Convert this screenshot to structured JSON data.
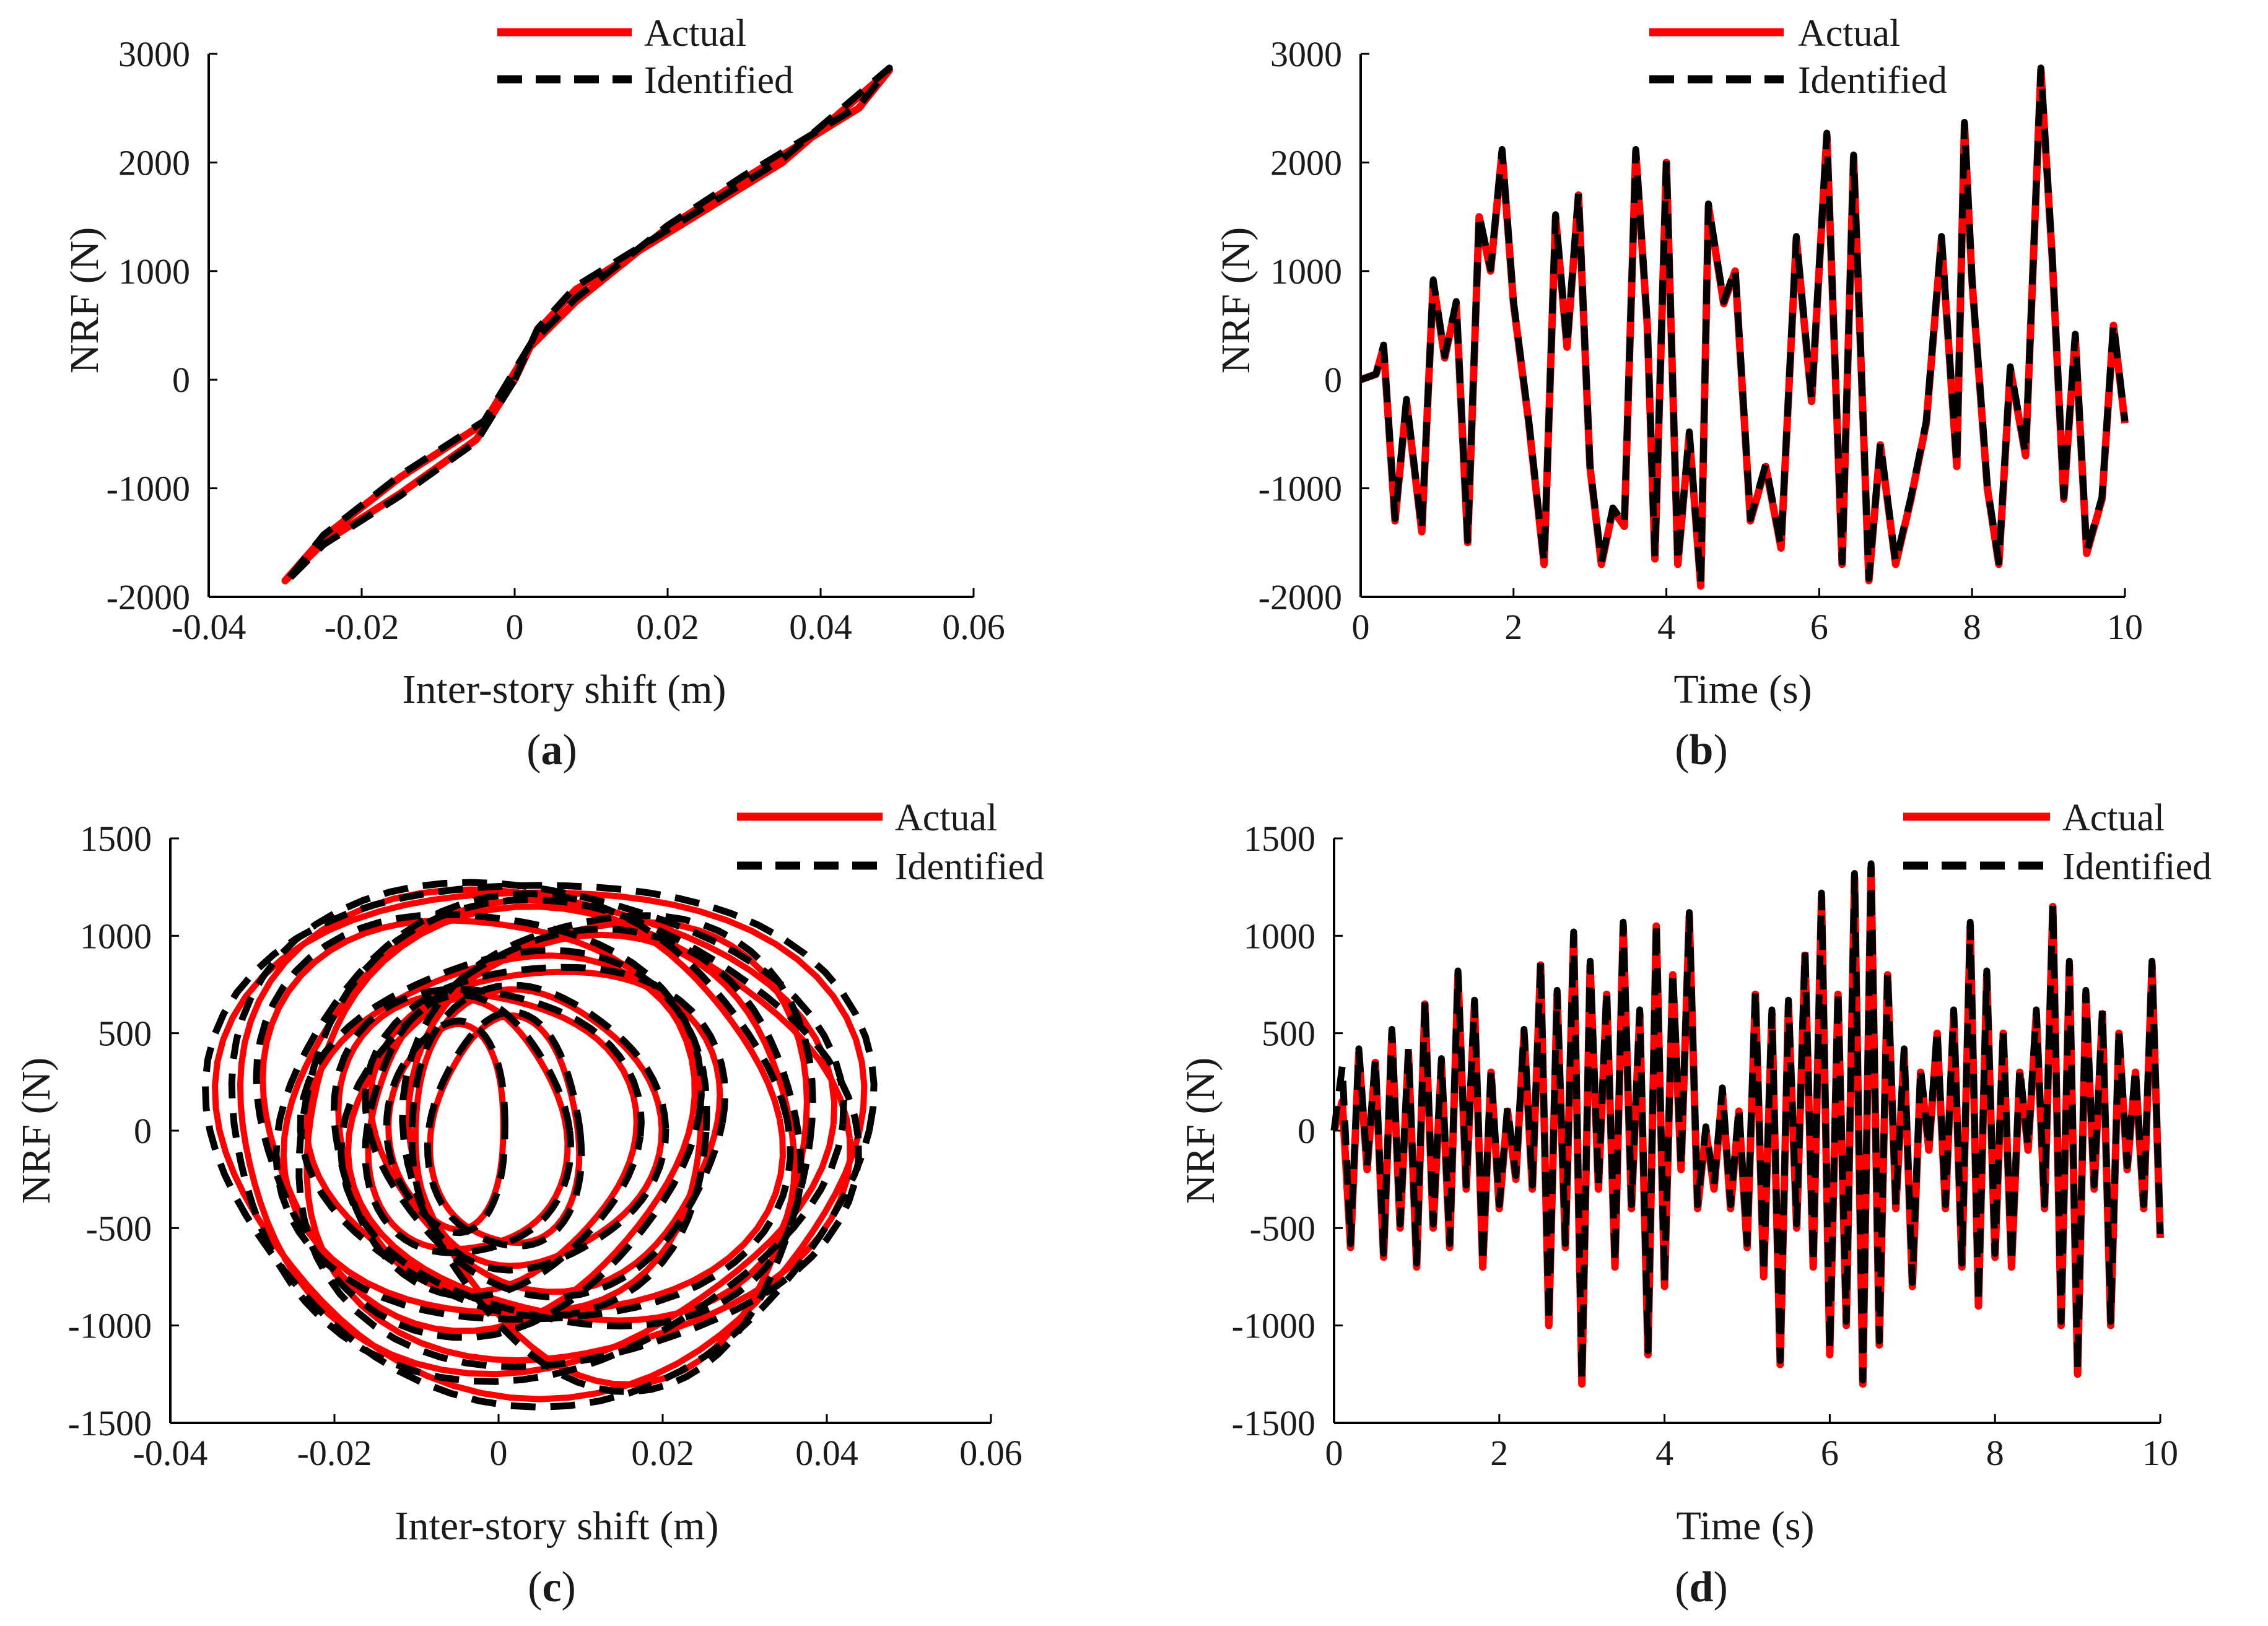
{
  "figure": {
    "legend_labels": [
      "Actual",
      "Identified"
    ],
    "colors": {
      "actual": "#ff0000",
      "identified": "#000000"
    }
  },
  "chart_data": [
    {
      "id": "a",
      "caption": "a",
      "type": "line",
      "subtype": "hysteresis",
      "xlabel": "Inter-story shift (m)",
      "ylabel": "NRF (N)",
      "xlim": [
        -0.04,
        0.06
      ],
      "ylim": [
        -2000,
        3000
      ],
      "xticks": [
        -0.04,
        -0.02,
        0,
        0.02,
        0.04,
        0.06
      ],
      "xtick_labels": [
        "-0.04",
        "-0.02",
        "0",
        "0.02",
        "0.04",
        "0.06"
      ],
      "yticks": [
        -2000,
        -1000,
        0,
        1000,
        2000,
        3000
      ],
      "ytick_labels": [
        "-2000",
        "-1000",
        "0",
        "1000",
        "2000",
        "3000"
      ],
      "legend_position": "top-right-outside",
      "series": [
        {
          "name": "Actual",
          "style": "solid",
          "color": "#ff0000",
          "x": [
            0,
            0.003,
            0.008,
            0.02,
            0.035,
            0.049,
            0.045,
            0.03,
            0.02,
            0.008,
            0.002,
            -0.004,
            -0.015,
            -0.025,
            -0.03,
            -0.025,
            -0.015,
            -0.005,
            0
          ],
          "y": [
            0,
            450,
            830,
            1350,
            2000,
            2850,
            2500,
            1850,
            1400,
            720,
            300,
            -400,
            -900,
            -1450,
            -1850,
            -1500,
            -1050,
            -550,
            0
          ]
        },
        {
          "name": "Identified",
          "style": "dashed",
          "color": "#000000",
          "x": [
            0,
            0.003,
            0.008,
            0.02,
            0.035,
            0.049,
            0.045,
            0.03,
            0.02,
            0.008,
            0.002,
            -0.004,
            -0.015,
            -0.025,
            -0.03,
            -0.025,
            -0.015,
            -0.005,
            0
          ],
          "y": [
            0,
            470,
            860,
            1380,
            2030,
            2870,
            2520,
            1880,
            1420,
            750,
            320,
            -380,
            -880,
            -1430,
            -1870,
            -1520,
            -1070,
            -570,
            0
          ]
        }
      ]
    },
    {
      "id": "b",
      "caption": "b",
      "type": "line",
      "xlabel": "Time (s)",
      "ylabel": "NRF (N)",
      "xlim": [
        0,
        10
      ],
      "ylim": [
        -2000,
        3000
      ],
      "xticks": [
        0,
        2,
        4,
        6,
        8,
        10
      ],
      "xtick_labels": [
        "0",
        "2",
        "4",
        "6",
        "8",
        "10"
      ],
      "yticks": [
        -2000,
        -1000,
        0,
        1000,
        2000,
        3000
      ],
      "ytick_labels": [
        "-2000",
        "-1000",
        "0",
        "1000",
        "2000",
        "3000"
      ],
      "legend_position": "top-right-outside",
      "series": [
        {
          "name": "Actual",
          "style": "solid",
          "color": "#ff0000",
          "x": [
            0,
            0.2,
            0.3,
            0.45,
            0.6,
            0.8,
            0.95,
            1.1,
            1.25,
            1.4,
            1.55,
            1.7,
            1.85,
            2.0,
            2.2,
            2.4,
            2.55,
            2.7,
            2.85,
            3.0,
            3.15,
            3.3,
            3.45,
            3.6,
            3.75,
            3.85,
            4.0,
            4.15,
            4.3,
            4.45,
            4.55,
            4.75,
            4.9,
            5.1,
            5.3,
            5.5,
            5.7,
            5.9,
            6.1,
            6.3,
            6.45,
            6.65,
            6.8,
            7.0,
            7.2,
            7.4,
            7.6,
            7.8,
            7.9,
            8.0,
            8.2,
            8.35,
            8.5,
            8.7,
            8.9,
            9.05,
            9.2,
            9.35,
            9.5,
            9.7,
            9.85,
            10.0
          ],
          "y": [
            0,
            50,
            300,
            -1300,
            -200,
            -1400,
            900,
            200,
            700,
            -1500,
            1500,
            1000,
            2100,
            700,
            -400,
            -1700,
            1500,
            300,
            1700,
            -800,
            -1700,
            -1200,
            -1350,
            2100,
            500,
            -1650,
            2000,
            -1700,
            -500,
            -1900,
            1600,
            700,
            1000,
            -1300,
            -800,
            -1550,
            1300,
            -200,
            2250,
            -1700,
            2050,
            -1850,
            -600,
            -1700,
            -1100,
            -400,
            1300,
            -800,
            2350,
            900,
            -1000,
            -1700,
            100,
            -700,
            2850,
            1100,
            -1100,
            400,
            -1600,
            -1100,
            500,
            -400
          ]
        },
        {
          "name": "Identified",
          "style": "dashed",
          "color": "#000000",
          "x": [
            0,
            0.2,
            0.3,
            0.45,
            0.6,
            0.8,
            0.95,
            1.1,
            1.25,
            1.4,
            1.55,
            1.7,
            1.85,
            2.0,
            2.2,
            2.4,
            2.55,
            2.7,
            2.85,
            3.0,
            3.15,
            3.3,
            3.45,
            3.6,
            3.75,
            3.85,
            4.0,
            4.15,
            4.3,
            4.45,
            4.55,
            4.75,
            4.9,
            5.1,
            5.3,
            5.5,
            5.7,
            5.9,
            6.1,
            6.3,
            6.45,
            6.65,
            6.8,
            7.0,
            7.2,
            7.4,
            7.6,
            7.8,
            7.9,
            8.0,
            8.2,
            8.35,
            8.5,
            8.7,
            8.9,
            9.05,
            9.2,
            9.35,
            9.5,
            9.7,
            9.85,
            10.0
          ],
          "y": [
            0,
            50,
            320,
            -1280,
            -180,
            -1380,
            920,
            220,
            720,
            -1480,
            1520,
            1020,
            2120,
            720,
            -380,
            -1680,
            1520,
            320,
            1720,
            -780,
            -1680,
            -1180,
            -1330,
            2120,
            520,
            -1630,
            2020,
            -1680,
            -480,
            -1880,
            1620,
            720,
            1020,
            -1280,
            -780,
            -1530,
            1320,
            -180,
            2270,
            -1680,
            2070,
            -1830,
            -580,
            -1680,
            -1080,
            -380,
            1320,
            -780,
            2370,
            920,
            -980,
            -1680,
            120,
            -680,
            2870,
            1120,
            -1080,
            420,
            -1580,
            -1080,
            520,
            -380
          ]
        }
      ]
    },
    {
      "id": "c",
      "caption": "c",
      "type": "line",
      "subtype": "hysteresis",
      "xlabel": "Inter-story shift (m)",
      "ylabel": "NRF (N)",
      "xlim": [
        -0.04,
        0.06
      ],
      "ylim": [
        -1500,
        1500
      ],
      "xticks": [
        -0.04,
        -0.02,
        0,
        0.02,
        0.04,
        0.06
      ],
      "xtick_labels": [
        "-0.04",
        "-0.02",
        "0",
        "0.02",
        "0.04",
        "0.06"
      ],
      "yticks": [
        -1500,
        -1000,
        -500,
        0,
        500,
        1000,
        1500
      ],
      "ytick_labels": [
        "-1500",
        "-1000",
        "-500",
        "0",
        "500",
        "1000",
        "1500"
      ],
      "legend_position": "top-right",
      "loops": [
        {
          "cx": 0.005,
          "cy": 0,
          "rx": 0.039,
          "ry": 1300
        },
        {
          "cx": 0.003,
          "cy": 30,
          "rx": 0.036,
          "ry": 1230
        },
        {
          "cx": 0.008,
          "cy": -40,
          "rx": 0.033,
          "ry": 1150
        },
        {
          "cx": 0.004,
          "cy": 60,
          "rx": 0.03,
          "ry": 1060
        },
        {
          "cx": 0.01,
          "cy": -20,
          "rx": 0.027,
          "ry": 980
        },
        {
          "cx": 0.002,
          "cy": 0,
          "rx": 0.024,
          "ry": 900
        },
        {
          "cx": 0.006,
          "cy": 40,
          "rx": 0.021,
          "ry": 820
        },
        {
          "cx": -0.002,
          "cy": -30,
          "rx": 0.018,
          "ry": 760
        },
        {
          "cx": 0.004,
          "cy": 10,
          "rx": 0.015,
          "ry": 700
        },
        {
          "cx": -0.004,
          "cy": 0,
          "rx": 0.012,
          "ry": 640
        },
        {
          "cx": 0.001,
          "cy": -20,
          "rx": 0.009,
          "ry": 580
        },
        {
          "cx": -0.006,
          "cy": 20,
          "rx": 0.007,
          "ry": 520
        },
        {
          "cx": 0.014,
          "cy": -60,
          "rx": 0.024,
          "ry": 1180
        },
        {
          "cx": -0.003,
          "cy": 80,
          "rx": 0.026,
          "ry": 1050
        }
      ],
      "series": [
        {
          "name": "Actual",
          "style": "solid",
          "color": "#ff0000"
        },
        {
          "name": "Identified",
          "style": "dashed",
          "color": "#000000"
        }
      ]
    },
    {
      "id": "d",
      "caption": "d",
      "type": "line",
      "xlabel": "Time (s)",
      "ylabel": "NRF (N)",
      "xlim": [
        0,
        10
      ],
      "ylim": [
        -1500,
        1500
      ],
      "xticks": [
        0,
        2,
        4,
        6,
        8,
        10
      ],
      "xtick_labels": [
        "0",
        "2",
        "4",
        "6",
        "8",
        "10"
      ],
      "yticks": [
        -1500,
        -1000,
        -500,
        0,
        500,
        1000,
        1500
      ],
      "ytick_labels": [
        "-1500",
        "-1000",
        "-500",
        "0",
        "500",
        "1000",
        "1500"
      ],
      "legend_position": "top-right-outside",
      "series": [
        {
          "name": "Actual",
          "style": "solid",
          "color": "#ff0000",
          "x": [
            0,
            0.1,
            0.2,
            0.3,
            0.4,
            0.5,
            0.6,
            0.7,
            0.8,
            0.9,
            1.0,
            1.1,
            1.2,
            1.3,
            1.4,
            1.5,
            1.6,
            1.7,
            1.8,
            1.9,
            2.0,
            2.1,
            2.2,
            2.3,
            2.4,
            2.5,
            2.6,
            2.7,
            2.8,
            2.9,
            3.0,
            3.1,
            3.2,
            3.3,
            3.4,
            3.5,
            3.6,
            3.7,
            3.8,
            3.9,
            4.0,
            4.1,
            4.2,
            4.3,
            4.4,
            4.5,
            4.6,
            4.7,
            4.8,
            4.9,
            5.0,
            5.1,
            5.2,
            5.3,
            5.4,
            5.5,
            5.6,
            5.7,
            5.8,
            5.9,
            6.0,
            6.1,
            6.2,
            6.3,
            6.4,
            6.5,
            6.6,
            6.7,
            6.8,
            6.9,
            7.0,
            7.1,
            7.2,
            7.3,
            7.4,
            7.5,
            7.6,
            7.7,
            7.8,
            7.9,
            8.0,
            8.1,
            8.2,
            8.3,
            8.4,
            8.5,
            8.6,
            8.7,
            8.8,
            8.9,
            9.0,
            9.1,
            9.2,
            9.3,
            9.4,
            9.5,
            9.6,
            9.7,
            9.8,
            9.9,
            10.0
          ],
          "y": [
            0,
            150,
            -600,
            400,
            -200,
            350,
            -650,
            500,
            -500,
            400,
            -700,
            650,
            -500,
            350,
            -600,
            800,
            -300,
            650,
            -700,
            300,
            -400,
            100,
            -250,
            500,
            -300,
            850,
            -1000,
            700,
            -600,
            1000,
            -1300,
            850,
            -300,
            700,
            -700,
            1050,
            -400,
            600,
            -1150,
            1050,
            -800,
            800,
            -200,
            1100,
            -400,
            0,
            -300,
            200,
            -400,
            100,
            -600,
            700,
            -750,
            600,
            -1200,
            650,
            -500,
            900,
            -700,
            1200,
            -1150,
            700,
            -1000,
            1300,
            -1300,
            1350,
            -1100,
            800,
            -400,
            400,
            -800,
            300,
            -100,
            500,
            -400,
            600,
            -700,
            1050,
            -900,
            800,
            -650,
            500,
            -700,
            300,
            -100,
            600,
            -400,
            1150,
            -1000,
            850,
            -1250,
            700,
            -300,
            600,
            -1000,
            500,
            -200,
            300,
            -400,
            850,
            -550
          ]
        },
        {
          "name": "Identified",
          "style": "dashed",
          "color": "#000000",
          "x": [
            0,
            0.1,
            0.2,
            0.3,
            0.4,
            0.5,
            0.6,
            0.7,
            0.8,
            0.9,
            1.0,
            1.1,
            1.2,
            1.3,
            1.4,
            1.5,
            1.6,
            1.7,
            1.8,
            1.9,
            2.0,
            2.1,
            2.2,
            2.3,
            2.4,
            2.5,
            2.6,
            2.7,
            2.8,
            2.9,
            3.0,
            3.1,
            3.2,
            3.3,
            3.4,
            3.5,
            3.6,
            3.7,
            3.8,
            3.9,
            4.0,
            4.1,
            4.2,
            4.3,
            4.4,
            4.5,
            4.6,
            4.7,
            4.8,
            4.9,
            5.0,
            5.1,
            5.2,
            5.3,
            5.4,
            5.5,
            5.6,
            5.7,
            5.8,
            5.9,
            6.0,
            6.1,
            6.2,
            6.3,
            6.4,
            6.5,
            6.6,
            6.7,
            6.8,
            6.9,
            7.0,
            7.1,
            7.2,
            7.3,
            7.4,
            7.5,
            7.6,
            7.7,
            7.8,
            7.9,
            8.0,
            8.1,
            8.2,
            8.3,
            8.4,
            8.5,
            8.6,
            8.7,
            8.8,
            8.9,
            9.0,
            9.1,
            9.2,
            9.3,
            9.4,
            9.5,
            9.6,
            9.7,
            9.8,
            9.9,
            10.0
          ],
          "y": [
            0,
            330,
            -580,
            420,
            -180,
            370,
            -630,
            520,
            -480,
            420,
            -680,
            670,
            -480,
            370,
            -580,
            820,
            -280,
            670,
            -680,
            320,
            -380,
            120,
            -230,
            520,
            -280,
            870,
            -980,
            720,
            -580,
            1020,
            -1280,
            870,
            -280,
            720,
            -680,
            1070,
            -380,
            620,
            -1130,
            1070,
            -780,
            820,
            -180,
            1120,
            -380,
            20,
            -280,
            220,
            -380,
            120,
            -580,
            720,
            -730,
            620,
            -1180,
            670,
            -480,
            920,
            -680,
            1220,
            -1130,
            720,
            -980,
            1320,
            -1280,
            1370,
            -1080,
            820,
            -380,
            420,
            -780,
            320,
            -80,
            520,
            -380,
            620,
            -680,
            1070,
            -880,
            820,
            -630,
            520,
            -680,
            320,
            -80,
            620,
            -380,
            1170,
            -980,
            870,
            -1230,
            720,
            -280,
            620,
            -980,
            520,
            -180,
            320,
            -380,
            870,
            -530
          ]
        }
      ]
    }
  ]
}
